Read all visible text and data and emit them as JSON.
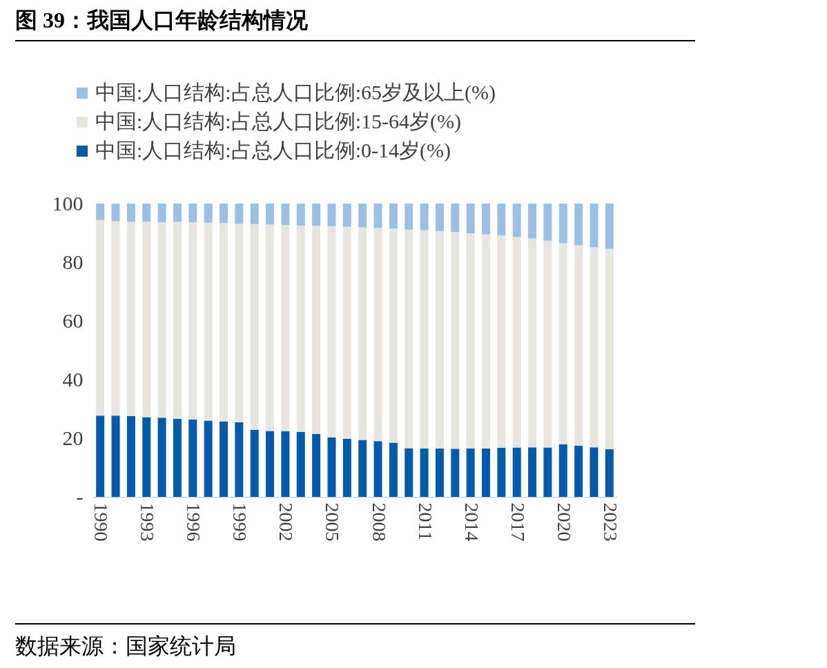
{
  "chart_data": {
    "type": "bar",
    "stacked": true,
    "title": "图 39：我国人口年龄结构情况",
    "annotations": [
      "数据来源：国家统计局"
    ],
    "categories": [
      "1990",
      null,
      null,
      "1993",
      null,
      null,
      "1996",
      null,
      null,
      "1999",
      null,
      null,
      "2002",
      null,
      null,
      "2005",
      null,
      null,
      "2008",
      null,
      null,
      "2011",
      null,
      null,
      "2014",
      null,
      null,
      "2017",
      null,
      null,
      "2020",
      null,
      null,
      "2023"
    ],
    "series": [
      {
        "name": "中国:人口结构:占总人口比例:0-14岁(%)",
        "color": "#065aaa",
        "values": [
          27.7,
          27.7,
          27.6,
          27.2,
          27.0,
          26.6,
          26.4,
          26.0,
          25.7,
          25.4,
          22.9,
          22.5,
          22.4,
          22.1,
          21.5,
          20.3,
          19.8,
          19.4,
          19.0,
          18.5,
          16.6,
          16.5,
          16.5,
          16.4,
          16.5,
          16.5,
          16.7,
          16.8,
          16.9,
          16.8,
          17.9,
          17.5,
          16.9,
          16.3
        ]
      },
      {
        "name": "中国:人口结构:占总人口比例:15-64岁(%)",
        "color": "#e7e5df",
        "values": [
          66.7,
          66.3,
          66.2,
          66.6,
          66.6,
          67.2,
          67.2,
          67.5,
          67.6,
          67.7,
          70.1,
          70.4,
          70.3,
          70.4,
          70.9,
          72.0,
          72.3,
          72.5,
          72.7,
          73.0,
          74.5,
          74.4,
          74.1,
          73.9,
          73.4,
          73.0,
          72.5,
          71.8,
          71.2,
          70.6,
          68.6,
          68.3,
          68.2,
          68.3
        ]
      },
      {
        "name": "中国:人口结构:占总人口比例:65岁及以上(%)",
        "color": "#9dbfe3",
        "values": [
          5.6,
          6.0,
          6.2,
          6.2,
          6.4,
          6.2,
          6.4,
          6.5,
          6.7,
          6.9,
          7.0,
          7.1,
          7.3,
          7.5,
          7.6,
          7.7,
          7.9,
          8.1,
          8.3,
          8.5,
          8.9,
          9.1,
          9.4,
          9.7,
          10.1,
          10.5,
          10.8,
          11.4,
          11.9,
          12.6,
          13.5,
          14.2,
          14.9,
          15.4
        ]
      }
    ],
    "ylim": [
      0,
      100
    ],
    "yticks": [
      {
        "value": 0,
        "label": "-"
      },
      20,
      40,
      60,
      80,
      100
    ],
    "grid": false,
    "legend": "top left"
  }
}
